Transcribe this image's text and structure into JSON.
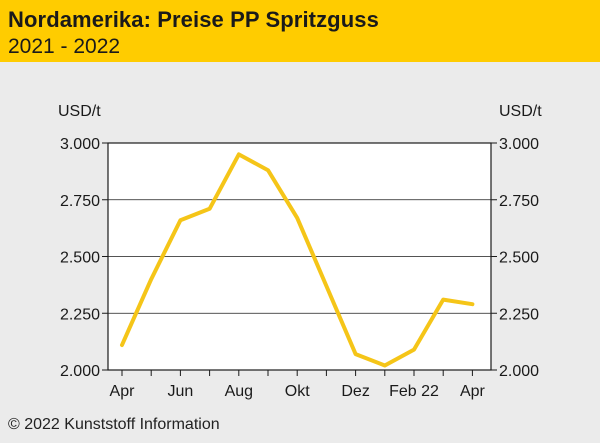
{
  "header": {
    "title": "Nordamerika: Preise PP Spritzguss",
    "subtitle": "2021 - 2022"
  },
  "footer": {
    "copyright": "© 2022 Kunststoff Information"
  },
  "colors": {
    "header_bg": "#ffcc00",
    "line": "#f5c518",
    "background": "#ebebeb",
    "plot_bg": "#ffffff"
  },
  "chart_data": {
    "type": "line",
    "ylabel_left": "USD/t",
    "ylabel_right": "USD/t",
    "ylim": [
      2000,
      3000
    ],
    "yticks": [
      2000,
      2250,
      2500,
      2750,
      3000
    ],
    "ytick_labels": [
      "2.000",
      "2.250",
      "2.500",
      "2.750",
      "3.000"
    ],
    "x_tick_labels": [
      "Apr",
      "Jun",
      "Aug",
      "Okt",
      "Dez",
      "Feb 22",
      "Apr"
    ],
    "x": [
      "Apr 21",
      "Mai 21",
      "Jun 21",
      "Jul 21",
      "Aug 21",
      "Sep 21",
      "Okt 21",
      "Nov 21",
      "Dez 21",
      "Jan 22",
      "Feb 22",
      "Mrz 22",
      "Apr 22"
    ],
    "series": [
      {
        "values": [
          2110,
          2400,
          2660,
          2710,
          2950,
          2880,
          2670,
          2370,
          2070,
          2020,
          2090,
          2310,
          2290
        ]
      }
    ],
    "grid": "horizontal",
    "legend": "none"
  }
}
